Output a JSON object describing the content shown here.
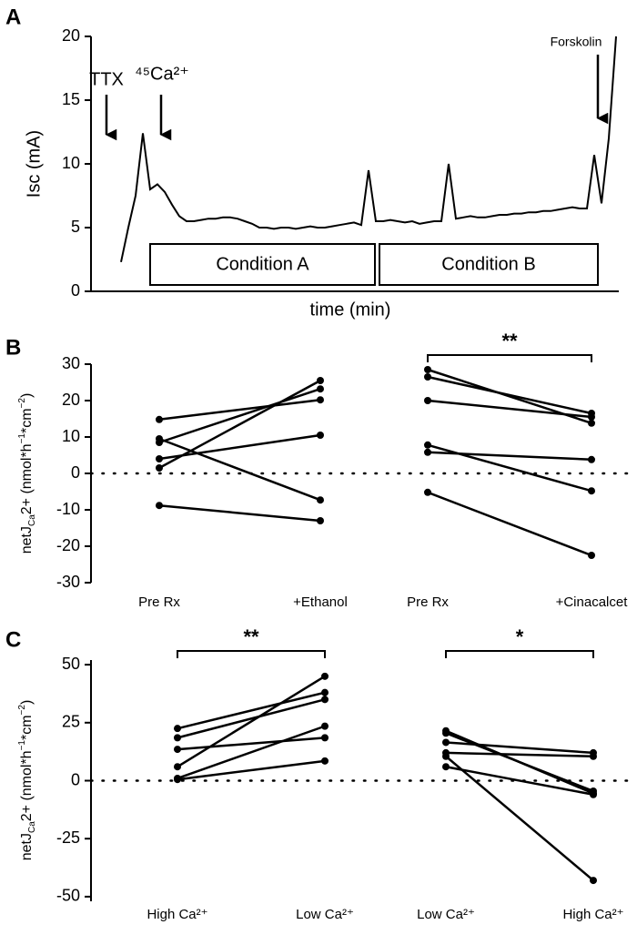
{
  "chart_data": [
    {
      "type": "line",
      "panel": "A",
      "y_label": "Isc (mA)",
      "x_label": "time (min)",
      "ylim": [
        0,
        20
      ],
      "yticks": [
        0,
        5,
        10,
        15,
        20
      ],
      "color": "#000000",
      "values": [
        2.3,
        5.0,
        7.5,
        12.4,
        8.0,
        8.4,
        7.8,
        6.8,
        5.9,
        5.5,
        5.5,
        5.6,
        5.7,
        5.7,
        5.8,
        5.8,
        5.7,
        5.5,
        5.3,
        5.0,
        5.0,
        4.9,
        5.0,
        5.0,
        4.9,
        5.0,
        5.1,
        5.0,
        5.0,
        5.1,
        5.2,
        5.3,
        5.4,
        5.2,
        9.5,
        5.5,
        5.5,
        5.6,
        5.5,
        5.4,
        5.5,
        5.3,
        5.4,
        5.5,
        5.5,
        10.0,
        5.7,
        5.8,
        5.9,
        5.8,
        5.8,
        5.9,
        6.0,
        6.0,
        6.1,
        6.1,
        6.2,
        6.2,
        6.3,
        6.3,
        6.4,
        6.5,
        6.6,
        6.5,
        6.5,
        10.7,
        6.9,
        12.0,
        20.0
      ],
      "annotations": [
        "TTX",
        "⁴⁵Ca²⁺",
        "Forskolin"
      ],
      "conditions": [
        "Condition A",
        "Condition B"
      ]
    },
    {
      "type": "paired",
      "panel": "B",
      "y_label": [
        {
          "text": "netJ",
          "style": "normal"
        },
        {
          "text": "Ca",
          "style": "sub"
        },
        {
          "text": "2+ (nmol*h",
          "style": "normal"
        },
        {
          "text": "−1",
          "style": "sup"
        },
        {
          "text": "*cm",
          "style": "normal"
        },
        {
          "text": "−2",
          "style": "sup"
        },
        {
          "text": ")",
          "style": "normal"
        }
      ],
      "ylim": [
        -30,
        30
      ],
      "yticks": [
        -30,
        -20,
        -10,
        0,
        10,
        20,
        30
      ],
      "zero_line": true,
      "color": "#000000",
      "groups": [
        {
          "categories": [
            "Pre Rx",
            "+Ethanol"
          ],
          "pairs": [
            [
              14.8,
              20.2
            ],
            [
              8.5,
              23.2
            ],
            [
              1.5,
              25.5
            ],
            [
              4.0,
              10.5
            ],
            [
              9.5,
              -7.3
            ],
            [
              -8.8,
              -13.0
            ]
          ]
        },
        {
          "categories": [
            "Pre Rx",
            "+Cinacalcet"
          ],
          "pairs": [
            [
              28.5,
              13.8
            ],
            [
              26.5,
              16.5
            ],
            [
              20.0,
              15.5
            ],
            [
              7.8,
              -4.8
            ],
            [
              5.8,
              3.8
            ],
            [
              -5.2,
              -22.5
            ]
          ],
          "significance": "**"
        }
      ]
    },
    {
      "type": "paired",
      "panel": "C",
      "y_label": [
        {
          "text": "netJ",
          "style": "normal"
        },
        {
          "text": "Ca",
          "style": "sub"
        },
        {
          "text": "2+ (nmol*h",
          "style": "normal"
        },
        {
          "text": "−1",
          "style": "sup"
        },
        {
          "text": "*cm",
          "style": "normal"
        },
        {
          "text": "−2",
          "style": "sup"
        },
        {
          "text": ")",
          "style": "normal"
        }
      ],
      "ylim": [
        -52,
        52
      ],
      "yticks": [
        -50,
        -25,
        0,
        25,
        50
      ],
      "zero_line": true,
      "color": "#000000",
      "groups": [
        {
          "categories": [
            "High Ca²⁺",
            "Low Ca²⁺"
          ],
          "pairs": [
            [
              22.5,
              38.0
            ],
            [
              18.5,
              35.0
            ],
            [
              13.5,
              18.5
            ],
            [
              6.0,
              45.0
            ],
            [
              1.0,
              23.5
            ],
            [
              0.5,
              8.5
            ]
          ],
          "significance": "**"
        },
        {
          "categories": [
            "Low Ca²⁺",
            "High Ca²⁺"
          ],
          "pairs": [
            [
              21.5,
              -5.5
            ],
            [
              20.5,
              -4.5
            ],
            [
              16.5,
              12.0
            ],
            [
              12.0,
              10.5
            ],
            [
              10.5,
              -43.0
            ],
            [
              6.0,
              -6.0
            ]
          ],
          "significance": "*"
        }
      ]
    }
  ]
}
